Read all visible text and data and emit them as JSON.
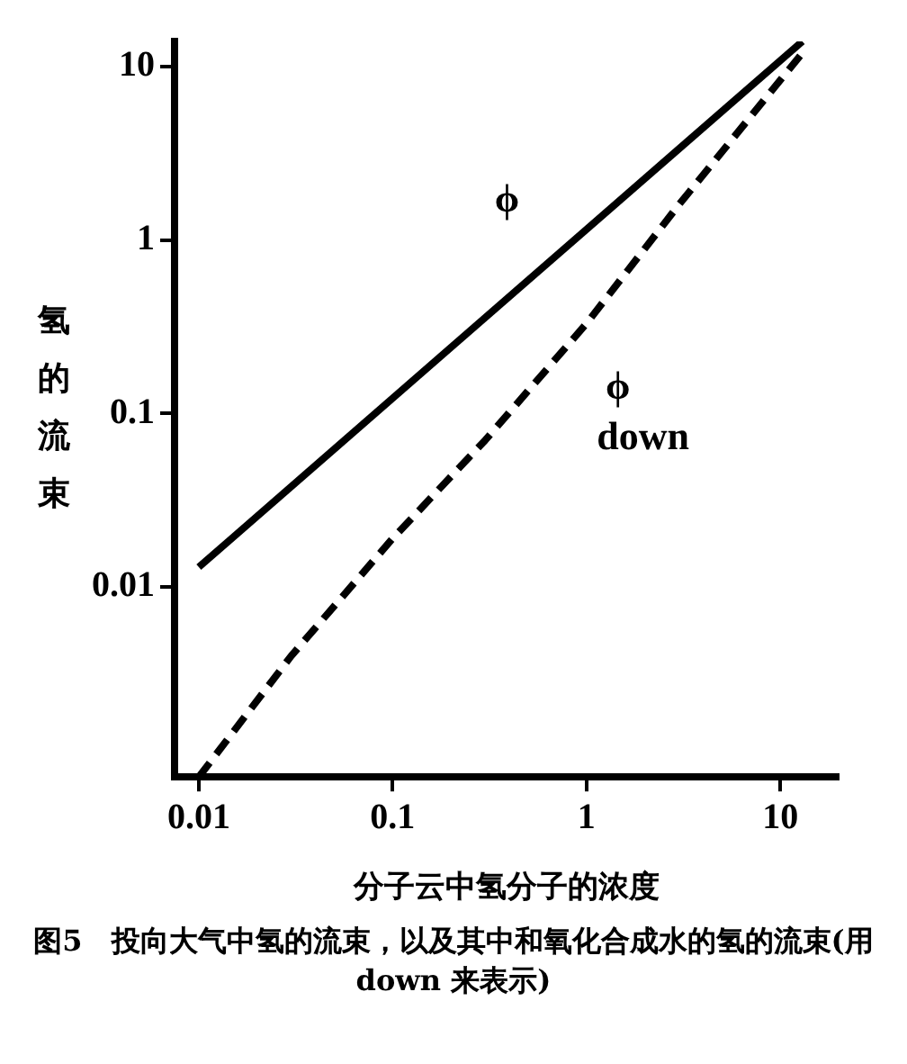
{
  "chart_data": {
    "type": "line",
    "xlabel": "分子云中氢分子的浓度",
    "ylabel": "氢的流束",
    "log": "xy",
    "grid": false,
    "legend": false,
    "marker": "none",
    "xlim": [
      0.0075,
      20
    ],
    "ylim": [
      0.0008,
      14
    ],
    "xticks": [
      0.01,
      0.1,
      1,
      10
    ],
    "yticks": [
      0.01,
      0.1,
      1,
      10
    ],
    "series": [
      {
        "name": "ϕ",
        "color": "#000000",
        "line_style": "solid",
        "x": [
          0.01,
          13
        ],
        "values": [
          0.013,
          14
        ]
      },
      {
        "name": "ϕ down",
        "color": "#000000",
        "line_style": "dashed",
        "x": [
          0.01,
          0.03,
          0.1,
          0.3,
          1,
          3,
          13
        ],
        "values": [
          0.0008,
          0.004,
          0.019,
          0.07,
          0.33,
          1.6,
          12
        ]
      }
    ],
    "annotations": [
      "图5　投向大气中氢的流束，以及其中和氧化合成水的氢的流束(用 down 来表示)"
    ]
  }
}
